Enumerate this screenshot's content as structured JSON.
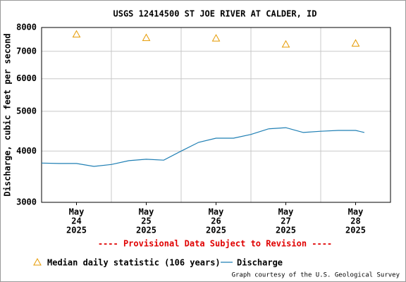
{
  "chart_data": {
    "type": "line",
    "title": "USGS 12414500 ST JOE RIVER AT CALDER, ID",
    "ylabel": "Discharge, cubic feet per second",
    "annotation": "---- Provisional Data Subject to Revision ----",
    "credit": "Graph courtesy of the U.S. Geological Survey",
    "log_y": true,
    "grid": true,
    "ylim": [
      3000,
      8000
    ],
    "yticks": [
      3000,
      4000,
      5000,
      6000,
      7000,
      8000
    ],
    "xlim": [
      "2025-05-24T00:00",
      "2025-05-29T00:00"
    ],
    "xgrid": [
      "2025-05-25T00:00",
      "2025-05-26T00:00",
      "2025-05-27T00:00",
      "2025-05-28T00:00"
    ],
    "xticks": [
      {
        "value": "2025-05-24T12:00",
        "label": [
          "May",
          "24",
          "2025"
        ]
      },
      {
        "value": "2025-05-25T12:00",
        "label": [
          "May",
          "25",
          "2025"
        ]
      },
      {
        "value": "2025-05-26T12:00",
        "label": [
          "May",
          "26",
          "2025"
        ]
      },
      {
        "value": "2025-05-27T12:00",
        "label": [
          "May",
          "27",
          "2025"
        ]
      },
      {
        "value": "2025-05-28T12:00",
        "label": [
          "May",
          "28",
          "2025"
        ]
      }
    ],
    "series": [
      {
        "name": "Median daily statistic (106 years)",
        "color": "#e69a00",
        "marker": "triangle",
        "x": [
          "2025-05-24T12:00",
          "2025-05-25T12:00",
          "2025-05-26T12:00",
          "2025-05-27T12:00",
          "2025-05-28T12:00"
        ],
        "values": [
          7700,
          7550,
          7530,
          7280,
          7320
        ]
      },
      {
        "name": "Discharge",
        "color": "#1f7fb4",
        "marker": "line",
        "x": [
          "2025-05-24T00:00",
          "2025-05-24T06:00",
          "2025-05-24T12:00",
          "2025-05-24T18:00",
          "2025-05-25T00:00",
          "2025-05-25T06:00",
          "2025-05-25T12:00",
          "2025-05-25T18:00",
          "2025-05-26T00:00",
          "2025-05-26T06:00",
          "2025-05-26T12:00",
          "2025-05-26T18:00",
          "2025-05-27T00:00",
          "2025-05-27T06:00",
          "2025-05-27T12:00",
          "2025-05-27T18:00",
          "2025-05-28T00:00",
          "2025-05-28T06:00",
          "2025-05-28T12:00",
          "2025-05-28T15:00"
        ],
        "values": [
          3740,
          3730,
          3730,
          3670,
          3710,
          3790,
          3820,
          3800,
          4000,
          4200,
          4300,
          4300,
          4390,
          4530,
          4560,
          4440,
          4470,
          4490,
          4490,
          4440
        ]
      }
    ]
  }
}
